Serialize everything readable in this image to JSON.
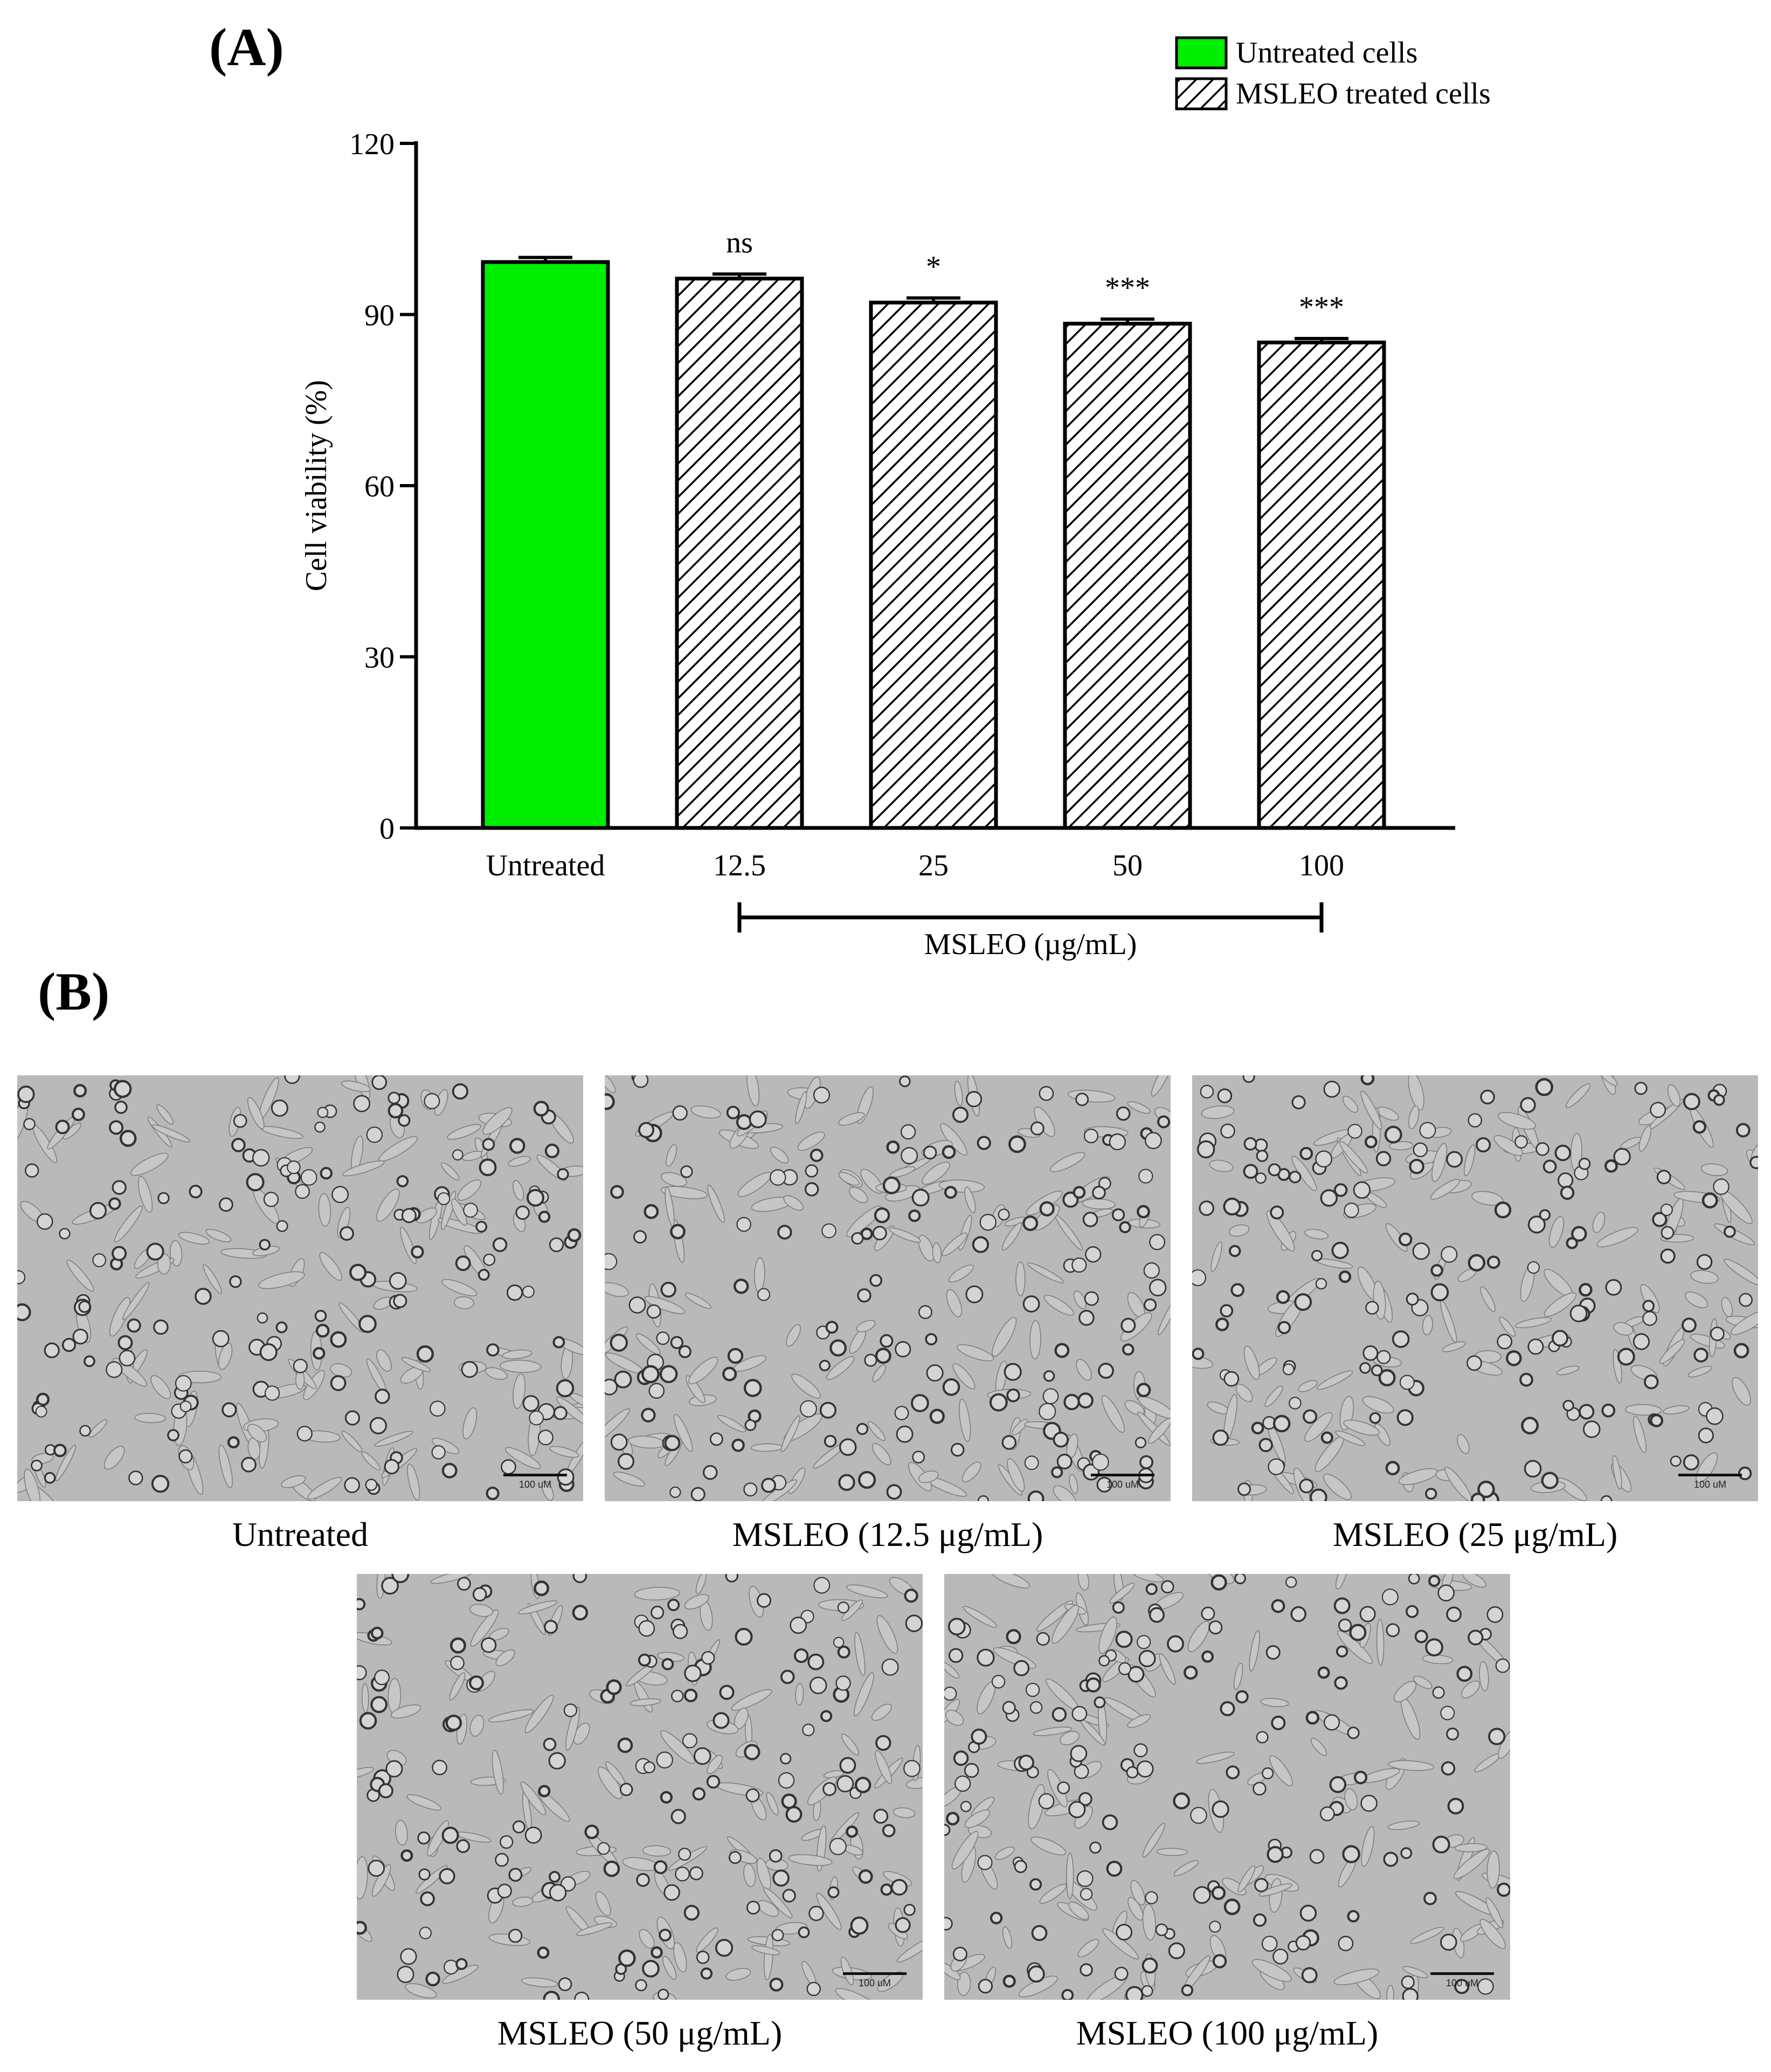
{
  "panel_a_label": "(A)",
  "panel_b_label": "(B)",
  "chart_data": {
    "type": "bar",
    "ylabel": "Cell viability (%)",
    "xlabel": "MSLEO (µg/mL)",
    "ylim": [
      0,
      120
    ],
    "yticks": [
      0,
      30,
      60,
      90,
      120
    ],
    "categories": [
      "Untreated",
      "12.5",
      "25",
      "50",
      "100"
    ],
    "values": [
      99.2,
      96.3,
      92.1,
      88.4,
      85.1
    ],
    "errors": [
      0.8,
      0.8,
      0.8,
      0.8,
      0.7
    ],
    "annotations": [
      "",
      "ns",
      "*",
      "***",
      "***"
    ],
    "series_style": [
      "untreated",
      "treated",
      "treated",
      "treated",
      "treated"
    ],
    "legend": [
      {
        "label": "Untreated cells",
        "style": "untreated"
      },
      {
        "label": "MSLEO treated cells",
        "style": "treated"
      }
    ],
    "legend_position": "top-right",
    "colors": {
      "untreated": "#00ee00",
      "hatch": "#000000",
      "axis": "#000000"
    }
  },
  "micrographs": [
    {
      "caption": "Untreated",
      "scale_label": "100 uM"
    },
    {
      "caption": "MSLEO (12.5 μg/mL)",
      "scale_label": "100 uM"
    },
    {
      "caption": "MSLEO (25 μg/mL)",
      "scale_label": "100 uM"
    },
    {
      "caption": "MSLEO (50 μg/mL)",
      "scale_label": "100 uM"
    },
    {
      "caption": "MSLEO (100 μg/mL)",
      "scale_label": "100 uM"
    }
  ]
}
